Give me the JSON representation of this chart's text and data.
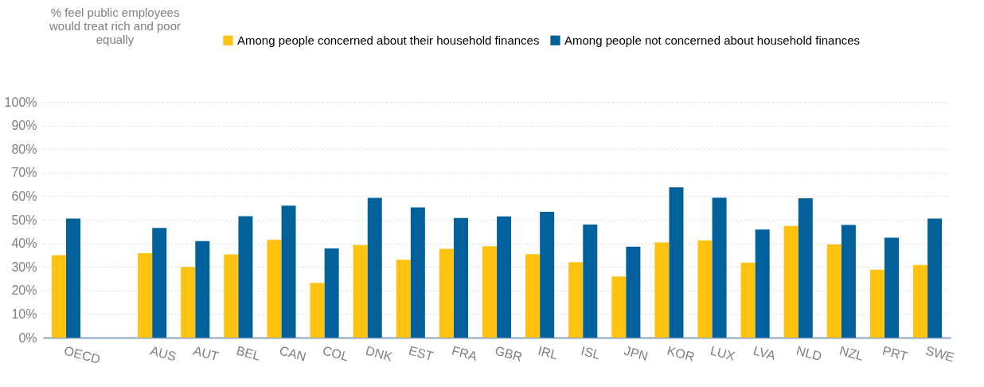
{
  "chart_data": {
    "type": "bar",
    "ylabel": "% feel public employees would treat rich and poor equally",
    "categories": [
      "OECD",
      null,
      "AUS",
      "AUT",
      "BEL",
      "CAN",
      "COL",
      "DNK",
      "EST",
      "FRA",
      "GBR",
      "IRL",
      "ISL",
      "JPN",
      "KOR",
      "LUX",
      "LVA",
      "NLD",
      "NZL",
      "PRT",
      "SWE"
    ],
    "series": [
      {
        "name": "Among people concerned about their household finances",
        "color": "#ffc20e",
        "values": [
          35,
          null,
          35.8,
          30,
          35.3,
          41.5,
          23.2,
          39.3,
          33,
          37.7,
          38.8,
          35.4,
          32,
          25.9,
          40.4,
          41.2,
          31.8,
          47.4,
          39.5,
          28.8,
          30.8
        ]
      },
      {
        "name": "Among people not concerned about household finances",
        "color": "#02619a",
        "values": [
          50.5,
          null,
          46.5,
          41,
          51.5,
          56,
          37.8,
          59.3,
          55.2,
          50.8,
          51.4,
          53.4,
          48,
          38.6,
          63.8,
          59.4,
          45.9,
          59.1,
          47.8,
          42.4,
          50.5
        ]
      }
    ],
    "ylim": [
      0,
      100
    ],
    "yticks": [
      {
        "value": 0,
        "label": "0%"
      },
      {
        "value": 10,
        "label": "10%"
      },
      {
        "value": 20,
        "label": "20%"
      },
      {
        "value": 30,
        "label": "30%"
      },
      {
        "value": 40,
        "label": "40%"
      },
      {
        "value": 50,
        "label": "50%"
      },
      {
        "value": 60,
        "label": "60%"
      },
      {
        "value": 70,
        "label": "70%"
      },
      {
        "value": 80,
        "label": "80%"
      },
      {
        "value": 90,
        "label": "90%"
      },
      {
        "value": 100,
        "label": "100%"
      }
    ],
    "grid": "y",
    "legend": "top right"
  }
}
